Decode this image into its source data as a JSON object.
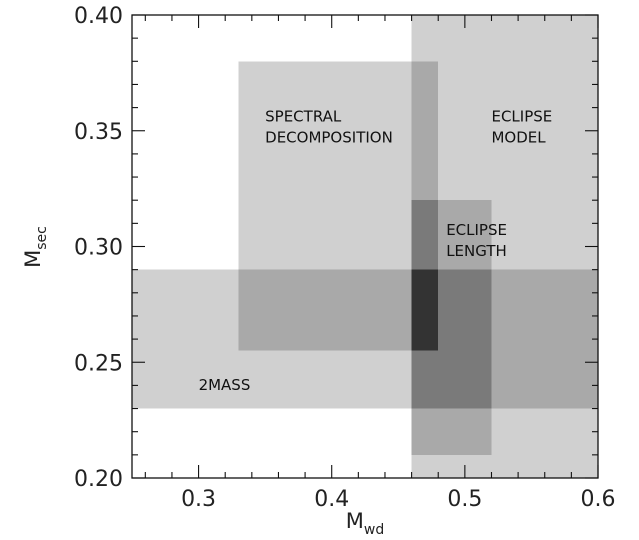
{
  "chart_data": {
    "type": "rectangle-regions",
    "xlabel": "M",
    "xlabel_sub": "wd",
    "ylabel": "M",
    "ylabel_sub": "sec",
    "xlim": [
      0.25,
      0.6
    ],
    "ylim": [
      0.2,
      0.4
    ],
    "x_ticks": [
      "0.3",
      "0.4",
      "0.5",
      "0.6"
    ],
    "x_tick_values": [
      0.3,
      0.4,
      0.5,
      0.6
    ],
    "y_ticks": [
      "0.20",
      "0.25",
      "0.30",
      "0.35",
      "0.40"
    ],
    "y_tick_values": [
      0.2,
      0.25,
      0.3,
      0.35,
      0.4
    ],
    "grid": false,
    "regions": [
      {
        "label_lines": [
          "2MASS"
        ],
        "x": [
          0.25,
          0.6
        ],
        "y": [
          0.23,
          0.29
        ],
        "label_at": [
          0.3,
          0.238
        ]
      },
      {
        "label_lines": [
          "SPECTRAL",
          "DECOMPOSITION"
        ],
        "x": [
          0.33,
          0.48
        ],
        "y": [
          0.255,
          0.38
        ],
        "label_at": [
          0.35,
          0.354
        ]
      },
      {
        "label_lines": [
          "ECLIPSE",
          "MODEL"
        ],
        "x": [
          0.46,
          0.6
        ],
        "y": [
          0.2,
          0.4
        ],
        "label_at": [
          0.52,
          0.354
        ]
      },
      {
        "label_lines": [
          "ECLIPSE",
          "LENGTH"
        ],
        "x": [
          0.46,
          0.52
        ],
        "y": [
          0.21,
          0.32
        ],
        "label_at": [
          0.486,
          0.305
        ]
      }
    ],
    "overlap_colors": {
      "one": "#d0d0d0",
      "two": "#a9a9a9",
      "three": "#7a7a7a",
      "four": "#333333"
    }
  }
}
